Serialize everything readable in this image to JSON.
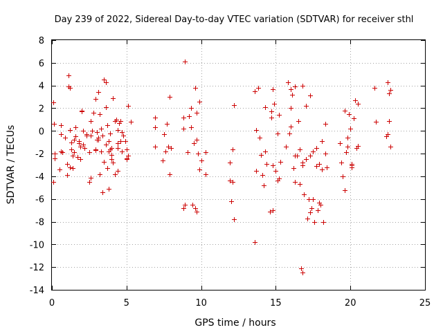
{
  "chart_data": {
    "type": "scatter",
    "title": "Day 239 of 2022, Sidereal Day-to-day VTEC variation (SDTVAR) for receiver sthl",
    "xlabel": "GPS time / hours",
    "ylabel": "SDTVAR / TECUs",
    "xlim": [
      0,
      25
    ],
    "ylim": [
      -14,
      8
    ],
    "xticks": [
      0,
      5,
      10,
      15,
      20,
      25
    ],
    "yticks": [
      8,
      6,
      4,
      2,
      0,
      -2,
      -4,
      -6,
      -8,
      -10,
      -12,
      -14
    ],
    "grid": true,
    "marker": "+",
    "color": "#cc0000",
    "series": [
      {
        "name": "SDTVAR",
        "x": [
          0.1,
          0.15,
          0.2,
          0.6,
          0.6,
          1.1,
          1.2,
          1.3,
          1.4,
          1.4,
          1.6,
          1.8,
          2.0,
          2.1,
          2.2,
          2.6,
          2.7,
          2.9,
          3.0,
          3.1,
          3.2,
          3.3,
          3.4,
          3.6,
          3.7,
          3.8,
          3.9,
          4.0,
          4.1,
          4.3,
          4.4,
          4.6,
          4.9,
          5.0,
          5.1,
          5.3,
          0.1,
          0.5,
          0.7,
          0.9,
          1.0,
          1.2,
          1.3,
          1.5,
          1.7,
          1.8,
          1.9,
          2.1,
          2.3,
          2.5,
          2.6,
          2.8,
          2.9,
          3.0,
          3.1,
          3.3,
          3.5,
          3.6,
          3.7,
          3.8,
          4.0,
          4.1,
          4.2,
          4.4,
          4.5,
          4.6,
          4.7,
          4.8,
          5.0,
          5.1,
          0.2,
          0.6,
          1.0,
          1.2,
          1.6,
          1.9,
          2.3,
          2.6,
          2.9,
          3.2,
          3.4,
          3.6,
          3.8,
          4.0,
          4.2,
          4.4,
          4.7,
          5.0,
          5.1,
          1.1,
          1.5,
          2.0,
          2.5,
          3.1,
          3.5,
          3.9,
          4.4,
          6.9,
          6.9,
          6.9,
          7.4,
          7.5,
          7.6,
          7.7,
          7.8,
          7.9,
          7.9,
          8.0,
          8.8,
          8.8,
          8.9,
          8.9,
          9.1,
          9.2,
          9.3,
          9.3,
          9.4,
          9.5,
          9.6,
          9.7,
          9.7,
          9.8,
          9.9,
          9.9,
          10.0,
          10.3,
          10.3,
          8.8,
          9.6,
          9.7,
          11.9,
          11.9,
          12.0,
          12.1,
          12.1,
          12.2,
          12.2,
          13.6,
          13.6,
          13.7,
          13.7,
          13.8,
          13.9,
          14.0,
          14.1,
          14.2,
          14.3,
          14.3,
          14.4,
          14.6,
          14.7,
          14.7,
          14.8,
          14.8,
          14.9,
          15.0,
          15.1,
          15.2,
          15.2,
          14.8,
          15.0,
          15.1,
          15.3,
          15.7,
          15.8,
          15.9,
          16.0,
          16.0,
          16.1,
          16.2,
          16.3,
          16.3,
          16.4,
          16.5,
          16.6,
          16.7,
          16.8,
          16.8,
          16.9,
          17.0,
          17.1,
          17.2,
          17.3,
          17.4,
          17.5,
          17.6,
          17.7,
          17.8,
          17.9,
          18.0,
          18.1,
          18.2,
          18.3,
          18.4,
          16.0,
          16.3,
          16.6,
          17.0,
          17.3,
          17.7,
          17.9,
          18.1,
          18.3,
          16.8,
          16.8,
          17.3,
          17.5,
          19.3,
          19.4,
          19.5,
          19.6,
          19.7,
          19.8,
          19.9,
          20.0,
          20.1,
          20.1,
          20.2,
          20.3,
          20.5,
          20.5,
          19.6,
          19.8,
          20.1,
          20.4,
          21.6,
          21.7,
          22.4,
          22.5,
          22.5,
          22.6,
          22.6,
          22.7,
          22.7
        ],
        "y": [
          2.5,
          0.6,
          -2.0,
          -0.3,
          -1.8,
          4.9,
          3.8,
          -1.0,
          -2.2,
          -3.3,
          0.3,
          -1.1,
          1.8,
          0.0,
          -1.5,
          -0.4,
          0.0,
          2.8,
          -0.8,
          3.4,
          1.5,
          0.2,
          -0.4,
          4.3,
          0.5,
          -0.9,
          -1.6,
          -2.5,
          2.9,
          1.0,
          0.1,
          0.9,
          -0.9,
          -2.5,
          2.2,
          0.8,
          -4.5,
          -3.4,
          -1.9,
          -0.6,
          -2.9,
          0.1,
          -1.6,
          -0.8,
          -2.3,
          -0.9,
          -1.4,
          -1.2,
          -0.3,
          -4.5,
          0.9,
          1.6,
          -1.6,
          -0.1,
          -0.6,
          -1.8,
          -2.7,
          2.1,
          -3.3,
          -1.8,
          -1.5,
          -2.8,
          -3.8,
          -1.5,
          0.7,
          -0.9,
          -1.8,
          -0.4,
          -1.6,
          -2.2,
          -2.4,
          0.5,
          -3.9,
          -3.2,
          -0.5,
          -2.5,
          -0.4,
          -4.1,
          -1.7,
          -3.8,
          -5.4,
          -1.2,
          -5.1,
          -2.1,
          0.9,
          -1.1,
          -0.1,
          -2.4,
          -2.2,
          3.9,
          -1.9,
          1.7,
          -1.9,
          -0.8,
          4.5,
          -0.2,
          -3.5,
          1.2,
          0.3,
          -1.4,
          -2.6,
          -0.3,
          -1.8,
          0.6,
          -1.4,
          3.0,
          -3.8,
          -1.5,
          1.2,
          0.2,
          -6.5,
          6.1,
          -1.9,
          1.3,
          2.0,
          0.3,
          -6.5,
          -1.1,
          3.8,
          1.6,
          -7.1,
          -2.0,
          2.6,
          -3.4,
          -2.6,
          -1.9,
          -3.8,
          -6.8,
          -6.8,
          -0.8,
          -2.8,
          -4.4,
          -6.2,
          -4.5,
          -1.6,
          2.3,
          -7.8,
          3.5,
          -9.8,
          0.1,
          -3.5,
          3.8,
          -0.6,
          -2.1,
          -3.9,
          -4.8,
          -1.8,
          2.1,
          -2.9,
          -7.1,
          1.7,
          1.2,
          -3.0,
          -7.0,
          2.4,
          -3.5,
          -0.2,
          1.4,
          -4.2,
          3.7,
          -3.5,
          -4.4,
          -2.7,
          -1.4,
          4.3,
          -0.2,
          2.0,
          0.4,
          3.2,
          -3.3,
          -4.5,
          -2.2,
          -2.2,
          0.9,
          -1.6,
          -12.1,
          -3.0,
          -2.8,
          -5.6,
          -2.5,
          -7.7,
          -6.0,
          -2.2,
          -6.8,
          -1.8,
          -8.0,
          -3.1,
          -7.0,
          -6.3,
          -6.5,
          -3.4,
          -8.0,
          0.6,
          -3.2,
          3.7,
          3.9,
          -4.7,
          2.2,
          3.1,
          -1.5,
          -2.9,
          -0.9,
          -2.0,
          4.0,
          -12.5,
          -7.2,
          -6.0,
          -1.1,
          -2.8,
          -4.0,
          -5.2,
          -1.9,
          -1.4,
          1.5,
          0.2,
          -2.9,
          -3.2,
          1.1,
          2.7,
          -1.3,
          2.4,
          1.8,
          -0.6,
          -3.0,
          -1.5,
          3.8,
          0.8,
          -0.5,
          -0.3,
          4.3,
          0.9,
          3.3,
          -1.4,
          3.6
        ]
      }
    ]
  }
}
